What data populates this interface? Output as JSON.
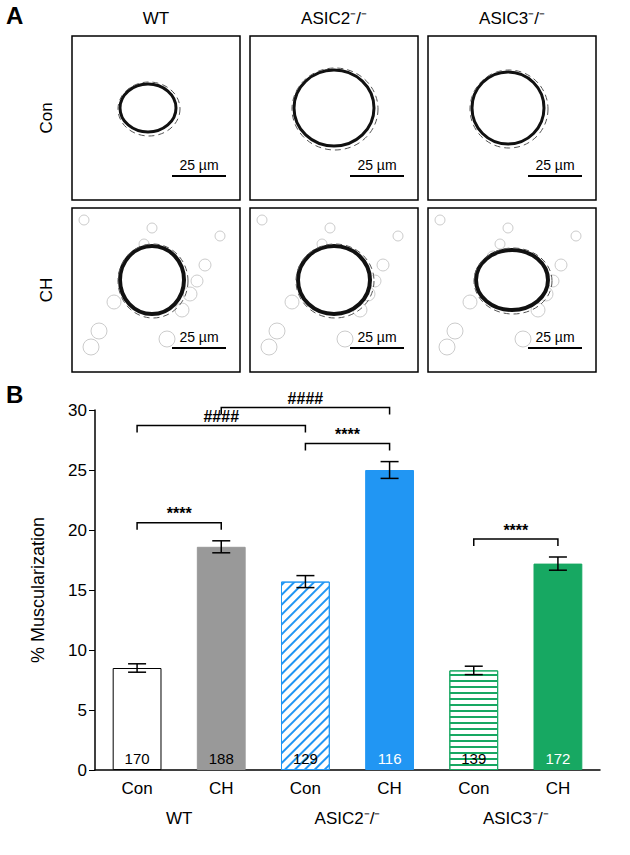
{
  "panel_a": {
    "label": "A",
    "columns": [
      "WT",
      "ASIC2⁻/⁻",
      "ASIC3⁻/⁻"
    ],
    "rows": [
      "Con",
      "CH"
    ],
    "scale_bar": "25 µm"
  },
  "panel_b_label": "B",
  "chart_data": {
    "type": "bar",
    "y_label": "% Muscularization",
    "categories": [
      "Con",
      "CH",
      "Con",
      "CH",
      "Con",
      "CH"
    ],
    "groups": [
      "WT",
      "ASIC2⁻/⁻",
      "ASIC3⁻/⁻"
    ],
    "values": [
      8.5,
      18.6,
      15.7,
      25.0,
      8.3,
      17.2
    ],
    "errors": [
      0.35,
      0.5,
      0.5,
      0.7,
      0.35,
      0.55
    ],
    "counts": [
      "170",
      "188",
      "129",
      "116",
      "139",
      "172"
    ],
    "colors": [
      "#ffffff",
      "#999999",
      "#2196f3",
      "#2196f3",
      "#17a862",
      "#17a862"
    ],
    "comparisons": [
      {
        "from": 0,
        "to": 1,
        "label": "****"
      },
      {
        "from": 2,
        "to": 3,
        "label": "****"
      },
      {
        "from": 4,
        "to": 5,
        "label": "****"
      },
      {
        "from": 0,
        "to": 2,
        "label": "####"
      },
      {
        "from": 1,
        "to": 3,
        "label": "####"
      }
    ],
    "ylim": [
      0,
      30
    ],
    "yticks": [
      0,
      5,
      10,
      15,
      20,
      25,
      30
    ],
    "grid": false
  }
}
